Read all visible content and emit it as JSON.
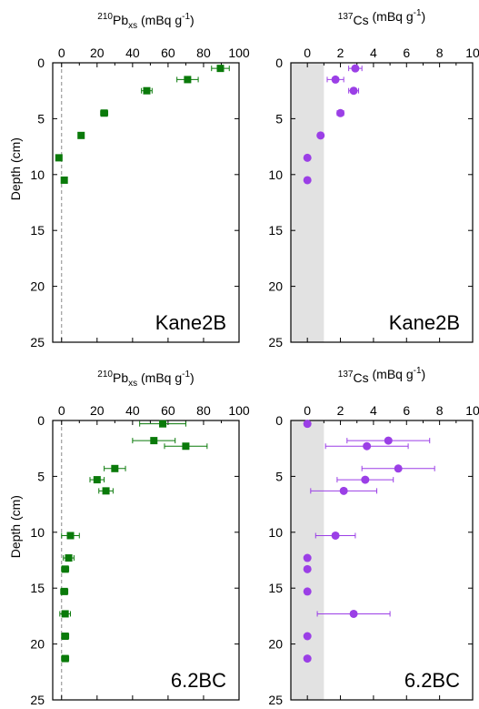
{
  "y_axis_label": "Depth (cm)",
  "chart_data": [
    {
      "id": "kane2b-pb",
      "type": "scatter",
      "title_parts": {
        "sup": "210",
        "main": "Pb",
        "sub": "xs",
        "rest": " (mBq g",
        "sup2": "-1",
        "close": ")"
      },
      "panel_label": "Kane2B",
      "xlim": [
        -5,
        100
      ],
      "ylim": [
        0,
        25
      ],
      "xticks": [
        0,
        20,
        40,
        60,
        80,
        100
      ],
      "yticks": [
        0,
        5,
        10,
        15,
        20,
        25
      ],
      "ylabel": "Depth (cm)",
      "marker": "square",
      "color": "#0a7a0a",
      "show_zero_line": true,
      "shade": null,
      "points": [
        {
          "x": 89.5,
          "y": 0.5,
          "xerr": 5
        },
        {
          "x": 71,
          "y": 1.5,
          "xerr": 6
        },
        {
          "x": 48,
          "y": 2.5,
          "xerr": 3
        },
        {
          "x": 24,
          "y": 4.5,
          "xerr": 2
        },
        {
          "x": 11,
          "y": 6.5,
          "xerr": 1.5
        },
        {
          "x": -1.5,
          "y": 8.5,
          "xerr": 0.5
        },
        {
          "x": 1.5,
          "y": 10.5,
          "xerr": 1
        }
      ]
    },
    {
      "id": "kane2b-cs",
      "type": "scatter",
      "title_parts": {
        "sup": "137",
        "main": "Cs",
        "sub": "",
        "rest": " (mBq g",
        "sup2": "-1",
        "close": ")"
      },
      "panel_label": "Kane2B",
      "xlim": [
        -1,
        10
      ],
      "ylim": [
        0,
        25
      ],
      "xticks": [
        0,
        2,
        4,
        6,
        8,
        10
      ],
      "yticks": [
        0,
        5,
        10,
        15,
        20,
        25
      ],
      "ylabel": "",
      "marker": "circle",
      "color": "#9b3fe6",
      "show_zero_line": false,
      "shade": [
        -1,
        1
      ],
      "points": [
        {
          "x": 2.9,
          "y": 0.5,
          "xerr": 0.4
        },
        {
          "x": 1.7,
          "y": 1.5,
          "xerr": 0.5
        },
        {
          "x": 2.8,
          "y": 2.5,
          "xerr": 0.3
        },
        {
          "x": 2.0,
          "y": 4.5,
          "xerr": 0.2
        },
        {
          "x": 0.8,
          "y": 6.5,
          "xerr": 0.1
        },
        {
          "x": 0.0,
          "y": 8.5,
          "xerr": 0.05
        },
        {
          "x": 0.0,
          "y": 10.5,
          "xerr": 0.05
        }
      ]
    },
    {
      "id": "bc62-pb",
      "type": "scatter",
      "title_parts": {
        "sup": "210",
        "main": "Pb",
        "sub": "xs",
        "rest": " (mBq g",
        "sup2": "-1",
        "close": ")"
      },
      "panel_label": "6.2BC",
      "xlim": [
        -5,
        100
      ],
      "ylim": [
        0,
        25
      ],
      "xticks": [
        0,
        20,
        40,
        60,
        80,
        100
      ],
      "yticks": [
        0,
        5,
        10,
        15,
        20,
        25
      ],
      "ylabel": "Depth (cm)",
      "marker": "square",
      "color": "#0a7a0a",
      "show_zero_line": true,
      "shade": null,
      "points": [
        {
          "x": 57,
          "y": 0.3,
          "xerr": 13
        },
        {
          "x": 52,
          "y": 1.8,
          "xerr": 12
        },
        {
          "x": 70,
          "y": 2.3,
          "xerr": 12
        },
        {
          "x": 30,
          "y": 4.3,
          "xerr": 6
        },
        {
          "x": 20,
          "y": 5.3,
          "xerr": 4
        },
        {
          "x": 25,
          "y": 6.3,
          "xerr": 4
        },
        {
          "x": 5,
          "y": 10.3,
          "xerr": 5
        },
        {
          "x": 4,
          "y": 12.3,
          "xerr": 3
        },
        {
          "x": 2,
          "y": 13.3,
          "xerr": 2
        },
        {
          "x": 1.5,
          "y": 15.3,
          "xerr": 2
        },
        {
          "x": 2,
          "y": 17.3,
          "xerr": 3
        },
        {
          "x": 2,
          "y": 19.3,
          "xerr": 2
        },
        {
          "x": 2,
          "y": 21.3,
          "xerr": 2
        }
      ]
    },
    {
      "id": "bc62-cs",
      "type": "scatter",
      "title_parts": {
        "sup": "137",
        "main": "Cs",
        "sub": "",
        "rest": " (mBq g",
        "sup2": "-1",
        "close": ")"
      },
      "panel_label": "6.2BC",
      "xlim": [
        -1,
        10
      ],
      "ylim": [
        0,
        25
      ],
      "xticks": [
        0,
        2,
        4,
        6,
        8,
        10
      ],
      "yticks": [
        0,
        5,
        10,
        15,
        20,
        25
      ],
      "ylabel": "",
      "marker": "circle",
      "color": "#9b3fe6",
      "show_zero_line": false,
      "shade": [
        -1,
        1
      ],
      "points": [
        {
          "x": 0.0,
          "y": 0.3,
          "xerr": 0.05
        },
        {
          "x": 4.9,
          "y": 1.8,
          "xerr": 2.5
        },
        {
          "x": 3.6,
          "y": 2.3,
          "xerr": 2.5
        },
        {
          "x": 5.5,
          "y": 4.3,
          "xerr": 2.2
        },
        {
          "x": 3.5,
          "y": 5.3,
          "xerr": 1.7
        },
        {
          "x": 2.2,
          "y": 6.3,
          "xerr": 2
        },
        {
          "x": 1.7,
          "y": 10.3,
          "xerr": 1.2
        },
        {
          "x": 0.0,
          "y": 12.3,
          "xerr": 0.05
        },
        {
          "x": 0.0,
          "y": 13.3,
          "xerr": 0.05
        },
        {
          "x": 0.0,
          "y": 15.3,
          "xerr": 0.05
        },
        {
          "x": 2.8,
          "y": 17.3,
          "xerr": 2.2
        },
        {
          "x": 0.0,
          "y": 19.3,
          "xerr": 0.05
        },
        {
          "x": 0.0,
          "y": 21.3,
          "xerr": 0.05
        }
      ]
    }
  ]
}
